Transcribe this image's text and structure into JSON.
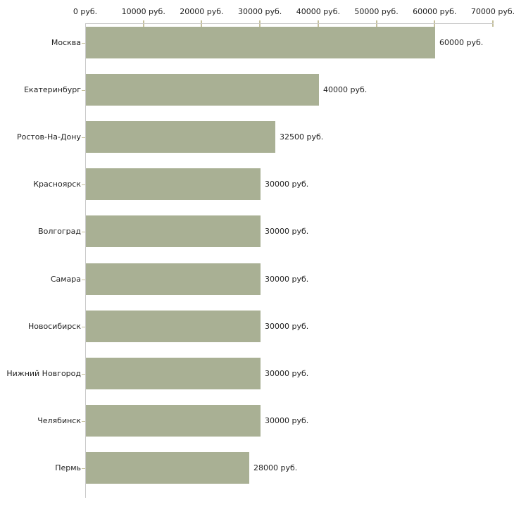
{
  "chart_data": {
    "type": "bar",
    "orientation": "horizontal",
    "title": "",
    "xlabel": "",
    "ylabel": "",
    "categories": [
      "Москва",
      "Екатеринбург",
      "Ростов-На-Дону",
      "Красноярск",
      "Волгоград",
      "Самара",
      "Новосибирск",
      "Нижний Новгород",
      "Челябинск",
      "Пермь"
    ],
    "values": [
      60000,
      40000,
      32500,
      30000,
      30000,
      30000,
      30000,
      30000,
      30000,
      28000
    ],
    "value_labels": [
      "60000 руб.",
      "40000 руб.",
      "32500 руб.",
      "30000 руб.",
      "30000 руб.",
      "30000 руб.",
      "30000 руб.",
      "30000 руб.",
      "30000 руб.",
      "28000 руб."
    ],
    "x_axis": {
      "position": "top",
      "min": 0,
      "max": 70000,
      "ticks": [
        0,
        10000,
        20000,
        30000,
        40000,
        50000,
        60000,
        70000
      ],
      "tick_labels": [
        "0 руб.",
        "10000 руб.",
        "20000 руб.",
        "30000 руб.",
        "40000 руб.",
        "50000 руб.",
        "60000 руб.",
        "70000 руб."
      ]
    },
    "grid": false,
    "legend": false,
    "colors": {
      "bar": "#a9b094",
      "axis_line": "#c9c9c9",
      "tick_mark": "#c5c09b",
      "text": "#1f1f1f",
      "background": "#ffffff"
    }
  }
}
